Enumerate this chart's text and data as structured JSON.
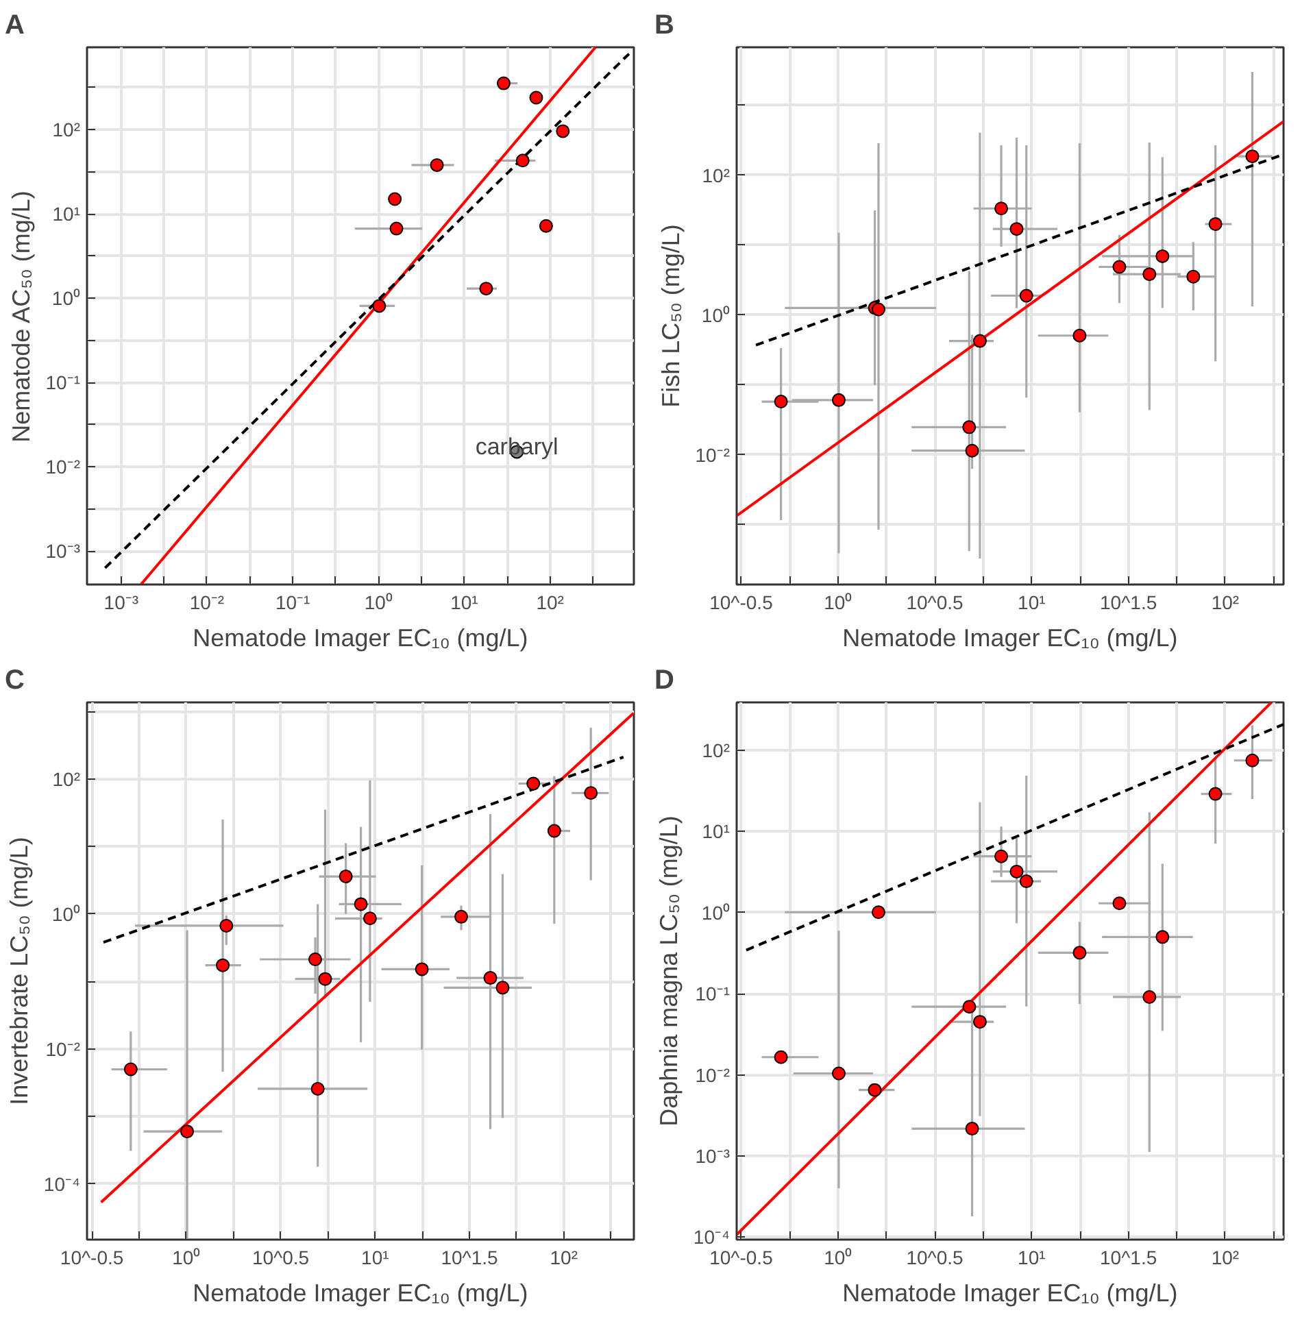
{
  "chart_data": [
    {
      "type": "scatter",
      "title": "A",
      "xlabel": "Nematode Imager EC₁₀ (mg/L)",
      "ylabel": "Nematode AC₅₀ (mg/L)",
      "grid": true,
      "marker": "circle",
      "xlim": [
        0.0004,
        950
      ],
      "ylim": [
        0.0004,
        950
      ],
      "log": "xy",
      "xticks": [
        {
          "value": 0.001,
          "label": "10⁻³"
        },
        {
          "value": 0.00316,
          "label": null
        },
        {
          "value": 0.01,
          "label": "10⁻²"
        },
        {
          "value": 0.0316,
          "label": null
        },
        {
          "value": 0.1,
          "label": "10⁻¹"
        },
        {
          "value": 0.316,
          "label": null
        },
        {
          "value": 1,
          "label": "10⁰"
        },
        {
          "value": 3.16,
          "label": null
        },
        {
          "value": 10,
          "label": "10¹"
        },
        {
          "value": 31.6,
          "label": null
        },
        {
          "value": 100,
          "label": "10²"
        },
        {
          "value": 316,
          "label": null
        }
      ],
      "yticks": [
        {
          "value": 0.001,
          "label": "10⁻³"
        },
        {
          "value": 0.00316,
          "label": null
        },
        {
          "value": 0.01,
          "label": "10⁻²"
        },
        {
          "value": 0.0316,
          "label": null
        },
        {
          "value": 0.1,
          "label": "10⁻¹"
        },
        {
          "value": 0.316,
          "label": null
        },
        {
          "value": 1,
          "label": "10⁰"
        },
        {
          "value": 3.16,
          "label": null
        },
        {
          "value": 10,
          "label": "10¹"
        },
        {
          "value": 31.6,
          "label": null
        },
        {
          "value": 100,
          "label": "10²"
        },
        {
          "value": 316,
          "label": null
        }
      ],
      "annotations": [
        {
          "text": "carbaryl",
          "x": 41,
          "y": 0.015
        }
      ],
      "series": [
        {
          "color": "#ff0000",
          "x": [
            28.8,
            69,
            141,
            4.8,
            48,
            1.55,
            1.62,
            90,
            18,
            1.02
          ],
          "values": [
            355,
            240,
            96,
            38,
            43,
            15,
            6.7,
            7.2,
            1.3,
            0.81
          ],
          "xerrors": [
            [
              24,
              41.7
            ],
            null,
            null,
            [
              2.43,
              7.6
            ],
            [
              22.9,
              67.6
            ],
            null,
            [
              0.53,
              3.24
            ],
            null,
            [
              10.7,
              24
            ],
            [
              0.6,
              1.55
            ]
          ]
        },
        {
          "color": "#808080",
          "x": [
            41
          ],
          "values": [
            0.015
          ]
        },
        {
          "type": "line",
          "marker": "none",
          "color": "#ff0000",
          "line_style": "solid",
          "x": [
            0.0017,
            339
          ],
          "values": [
            0.0004,
            950
          ]
        },
        {
          "type": "line",
          "marker": "none",
          "color": "#000000",
          "line_style": "dashed",
          "x": [
            0.00065,
            832
          ],
          "values": [
            0.00063,
            794
          ]
        }
      ]
    },
    {
      "type": "scatter",
      "title": "B",
      "xlabel": "Nematode Imager EC₁₀ (mg/L)",
      "ylabel": "Fish LC₅₀ (mg/L)",
      "grid": true,
      "marker": "circle",
      "xlim": [
        0.3,
        200
      ],
      "ylim": [
        0.00014,
        6800
      ],
      "log": "xy",
      "xticks": [
        {
          "value": 0.316228,
          "label": "10^-0.5"
        },
        {
          "value": 0.562,
          "label": null
        },
        {
          "value": 1,
          "label": "10⁰"
        },
        {
          "value": 1.78,
          "label": null
        },
        {
          "value": 3.16228,
          "label": "10^0.5"
        },
        {
          "value": 5.62,
          "label": null
        },
        {
          "value": 10,
          "label": "10¹"
        },
        {
          "value": 17.8,
          "label": null
        },
        {
          "value": 31.6228,
          "label": "10^1.5"
        },
        {
          "value": 56.2,
          "label": null
        },
        {
          "value": 100,
          "label": "10²"
        },
        {
          "value": 178,
          "label": null
        }
      ],
      "yticks": [
        {
          "value": 0.001,
          "label": null
        },
        {
          "value": 0.01,
          "label": "10⁻²"
        },
        {
          "value": 0.1,
          "label": null
        },
        {
          "value": 1,
          "label": "10⁰"
        },
        {
          "value": 10,
          "label": null
        },
        {
          "value": 100,
          "label": "10²"
        },
        {
          "value": 1000,
          "label": null
        }
      ],
      "series": [
        {
          "color": "#ff0000",
          "x": [
            0.508,
            1.01,
            1.55,
            1.62,
            6.97,
            8.37,
            9.4,
            5.41,
            4.76,
            4.93,
            17.7,
            28.4,
            40.6,
            47.4,
            68.4,
            89,
            138
          ],
          "values": [
            0.058,
            0.061,
            1.27,
            1.21,
            33.6,
            17.1,
            1.9,
            0.427,
            0.025,
            0.0115,
            0.51,
            4.9,
            3.85,
            6.97,
            3.56,
            20.1,
            187
          ],
          "xerrors": [
            [
              0.404,
              0.794
            ],
            [
              0.579,
              1.52
            ],
            [
              0.532,
              3.21
            ],
            null,
            [
              5.01,
              10
            ],
            [
              6.31,
              13.6
            ],
            [
              6.17,
              11.2
            ],
            [
              3.75,
              6.38
            ],
            [
              2.4,
              7.38
            ],
            [
              2.4,
              9.23
            ],
            [
              10.8,
              24.9
            ],
            [
              22.2,
              40.6
            ],
            [
              26.3,
              58.9
            ],
            [
              23.1,
              69.2
            ],
            [
              56.6,
              88.1
            ],
            [
              78.5,
              108
            ],
            [
              111,
              175
            ]
          ],
          "errors": [
            [
              0.00117,
              0.339
            ],
            [
              0.00039,
              15.1
            ],
            [
              0.1,
              31.6
            ],
            [
              0.00085,
              288
            ],
            [
              9.55,
              269
            ],
            [
              1.26,
              347
            ],
            [
              0.066,
              269
            ],
            [
              0.00033,
              407
            ],
            [
              0.00042,
              4.27
            ],
            [
              0.0063,
              0.525
            ],
            [
              0.041,
              288
            ],
            [
              1.49,
              14.1
            ],
            [
              0.044,
              295
            ],
            [
              1.27,
              182
            ],
            [
              1.17,
              11.1
            ],
            [
              0.219,
              269
            ],
            [
              1.33,
              3020
            ]
          ]
        },
        {
          "type": "line",
          "marker": "none",
          "color": "#ff0000",
          "line_style": "solid",
          "x": [
            0.3,
            200
          ],
          "values": [
            0.00135,
            589
          ]
        },
        {
          "type": "line",
          "marker": "none",
          "color": "#000000",
          "line_style": "dashed",
          "x": [
            0.377,
            200
          ],
          "values": [
            0.372,
            200
          ]
        }
      ]
    },
    {
      "type": "scatter",
      "title": "C",
      "xlabel": "Nematode Imager EC₁₀ (mg/L)",
      "ylabel": "Invertebrate LC₅₀ (mg/L)",
      "grid": true,
      "marker": "circle",
      "xlim": [
        0.298,
        235
      ],
      "ylim": [
        1.5e-05,
        1365
      ],
      "log": "xy",
      "xticks": [
        {
          "value": 0.316228,
          "label": "10^-0.5"
        },
        {
          "value": 0.562,
          "label": null
        },
        {
          "value": 1,
          "label": "10⁰"
        },
        {
          "value": 1.78,
          "label": null
        },
        {
          "value": 3.16228,
          "label": "10^0.5"
        },
        {
          "value": 5.62,
          "label": null
        },
        {
          "value": 10,
          "label": "10¹"
        },
        {
          "value": 17.8,
          "label": null
        },
        {
          "value": 31.6228,
          "label": "10^1.5"
        },
        {
          "value": 56.2,
          "label": null
        },
        {
          "value": 100,
          "label": "10²"
        },
        {
          "value": 178,
          "label": null
        }
      ],
      "yticks": [
        {
          "value": 0.0001,
          "label": "10⁻⁴"
        },
        {
          "value": 0.001,
          "label": null
        },
        {
          "value": 0.01,
          "label": "10⁻²"
        },
        {
          "value": 0.1,
          "label": null
        },
        {
          "value": 1,
          "label": "10⁰"
        },
        {
          "value": 10,
          "label": null
        },
        {
          "value": 100,
          "label": "10²"
        },
        {
          "value": 1000,
          "label": null
        }
      ],
      "series": [
        {
          "color": "#ff0000",
          "x": [
            0.508,
            1.01,
            1.56,
            1.63,
            4.82,
            4.97,
            5.44,
            7.0,
            8.41,
            9.4,
            17.7,
            28.6,
            40.8,
            47.4,
            68.9,
            89,
            139
          ],
          "values": [
            0.005,
            0.0006,
            0.174,
            0.67,
            0.213,
            0.00257,
            0.109,
            3.6,
            1.4,
            0.86,
            0.152,
            0.91,
            0.113,
            0.081,
            85.5,
            17,
            62
          ],
          "xerrors": [
            [
              0.401,
              0.791
            ],
            [
              0.593,
              1.55
            ],
            [
              1.26,
              1.95
            ],
            [
              0.535,
              3.27
            ],
            [
              2.45,
              7.41
            ],
            [
              2.39,
              9.12
            ],
            [
              3.77,
              6.53
            ],
            [
              5.05,
              10.1
            ],
            [
              6.43,
              13.8
            ],
            [
              6.14,
              10.9
            ],
            [
              10.8,
              24.8
            ],
            [
              22.3,
              41
            ],
            [
              27,
              61.1
            ],
            [
              23.1,
              67.6
            ],
            [
              57.5,
              85.1
            ],
            [
              84.1,
              108
            ],
            [
              110,
              173
            ]
          ],
          "errors": [
            [
              0.00031,
              0.0182
            ],
            [
              1.5e-05,
              0.575
            ],
            [
              0.0046,
              25.1
            ],
            [
              0.347,
              0.955
            ],
            [
              0.066,
              0.45
            ],
            [
              0.00018,
              1.4
            ],
            [
              0.056,
              35.2
            ],
            [
              1.0,
              11.2
            ],
            [
              0.0126,
              19.5
            ],
            [
              0.05,
              95.5
            ],
            [
              0.0098,
              5.28
            ],
            [
              0.577,
              1.33
            ],
            [
              0.00065,
              30.2
            ],
            [
              0.00095,
              3.92
            ],
            null,
            [
              0.716,
              110
            ],
            [
              3.16,
              575
            ]
          ]
        },
        {
          "type": "line",
          "marker": "none",
          "color": "#ff0000",
          "line_style": "solid",
          "x": [
            0.354,
            234
          ],
          "values": [
            5.37e-05,
            946
          ]
        },
        {
          "type": "line",
          "marker": "none",
          "color": "#000000",
          "line_style": "dashed",
          "x": [
            0.364,
            207
          ],
          "values": [
            0.38,
            211
          ]
        }
      ]
    },
    {
      "type": "scatter",
      "title": "D",
      "xlabel": "Nematode Imager EC₁₀ (mg/L)",
      "ylabel": "Daphnia magna LC₅₀ (mg/L)",
      "grid": true,
      "marker": "circle",
      "xlim": [
        0.3,
        200
      ],
      "ylim": [
        9.3e-05,
        390
      ],
      "log": "xy",
      "xticks": [
        {
          "value": 0.316228,
          "label": "10^-0.5"
        },
        {
          "value": 0.562,
          "label": null
        },
        {
          "value": 1,
          "label": "10⁰"
        },
        {
          "value": 1.78,
          "label": null
        },
        {
          "value": 3.16228,
          "label": "10^0.5"
        },
        {
          "value": 5.62,
          "label": null
        },
        {
          "value": 10,
          "label": "10¹"
        },
        {
          "value": 17.8,
          "label": null
        },
        {
          "value": 31.6228,
          "label": "10^1.5"
        },
        {
          "value": 56.2,
          "label": null
        },
        {
          "value": 100,
          "label": "10²"
        },
        {
          "value": 178,
          "label": null
        }
      ],
      "yticks": [
        {
          "value": 0.0001,
          "label": "10⁻⁴"
        },
        {
          "value": 0.001,
          "label": "10⁻³"
        },
        {
          "value": 0.01,
          "label": "10⁻²"
        },
        {
          "value": 0.1,
          "label": "10⁻¹"
        },
        {
          "value": 1,
          "label": "10⁰"
        },
        {
          "value": 10,
          "label": "10¹"
        },
        {
          "value": 100,
          "label": "10²"
        }
      ],
      "series": [
        {
          "color": "#ff0000",
          "x": [
            0.508,
            1.01,
            1.55,
            1.62,
            4.77,
            5.41,
            4.93,
            6.97,
            8.37,
            9.4,
            17.7,
            28.4,
            40.6,
            47.4,
            89,
            138
          ],
          "values": [
            0.0165,
            0.0104,
            0.0065,
            1.01,
            0.069,
            0.045,
            0.00217,
            4.93,
            3.2,
            2.43,
            0.32,
            1.3,
            0.091,
            0.5,
            29,
            75
          ],
          "xerrors": [
            [
              0.404,
              0.794
            ],
            [
              0.589,
              1.52
            ],
            [
              1.28,
              1.96
            ],
            [
              0.532,
              3.21
            ],
            [
              2.4,
              7.38
            ],
            [
              3.75,
              6.38
            ],
            [
              2.4,
              9.23
            ],
            [
              5.01,
              10
            ],
            [
              6.31,
              13.6
            ],
            [
              6.17,
              11.2
            ],
            [
              10.8,
              24.9
            ],
            [
              22.2,
              40.6
            ],
            [
              26.3,
              58.9
            ],
            [
              23.1,
              68.1
            ],
            [
              75,
              108
            ],
            [
              111,
              175
            ]
          ],
          "errors": [
            null,
            [
              0.0004,
              0.598
            ],
            null,
            null,
            null,
            [
              0.0031,
              22.9
            ],
            [
              0.00018,
              0.086
            ],
            [
              2.75,
              11.5
            ],
            [
              0.74,
              8.3
            ],
            [
              0.0697,
              48.6
            ],
            [
              0.0746,
              0.769
            ],
            null,
            [
              0.00112,
              17.2
            ],
            [
              0.0348,
              4.0
            ],
            [
              7.08,
              79.4
            ],
            [
              25.1,
              203
            ]
          ]
        },
        {
          "type": "line",
          "marker": "none",
          "color": "#ff0000",
          "line_style": "solid",
          "x": [
            0.3,
            173
          ],
          "values": [
            0.000107,
            389
          ]
        },
        {
          "type": "line",
          "marker": "none",
          "color": "#000000",
          "line_style": "dashed",
          "x": [
            0.336,
            200
          ],
          "values": [
            0.344,
            209
          ]
        }
      ]
    }
  ]
}
